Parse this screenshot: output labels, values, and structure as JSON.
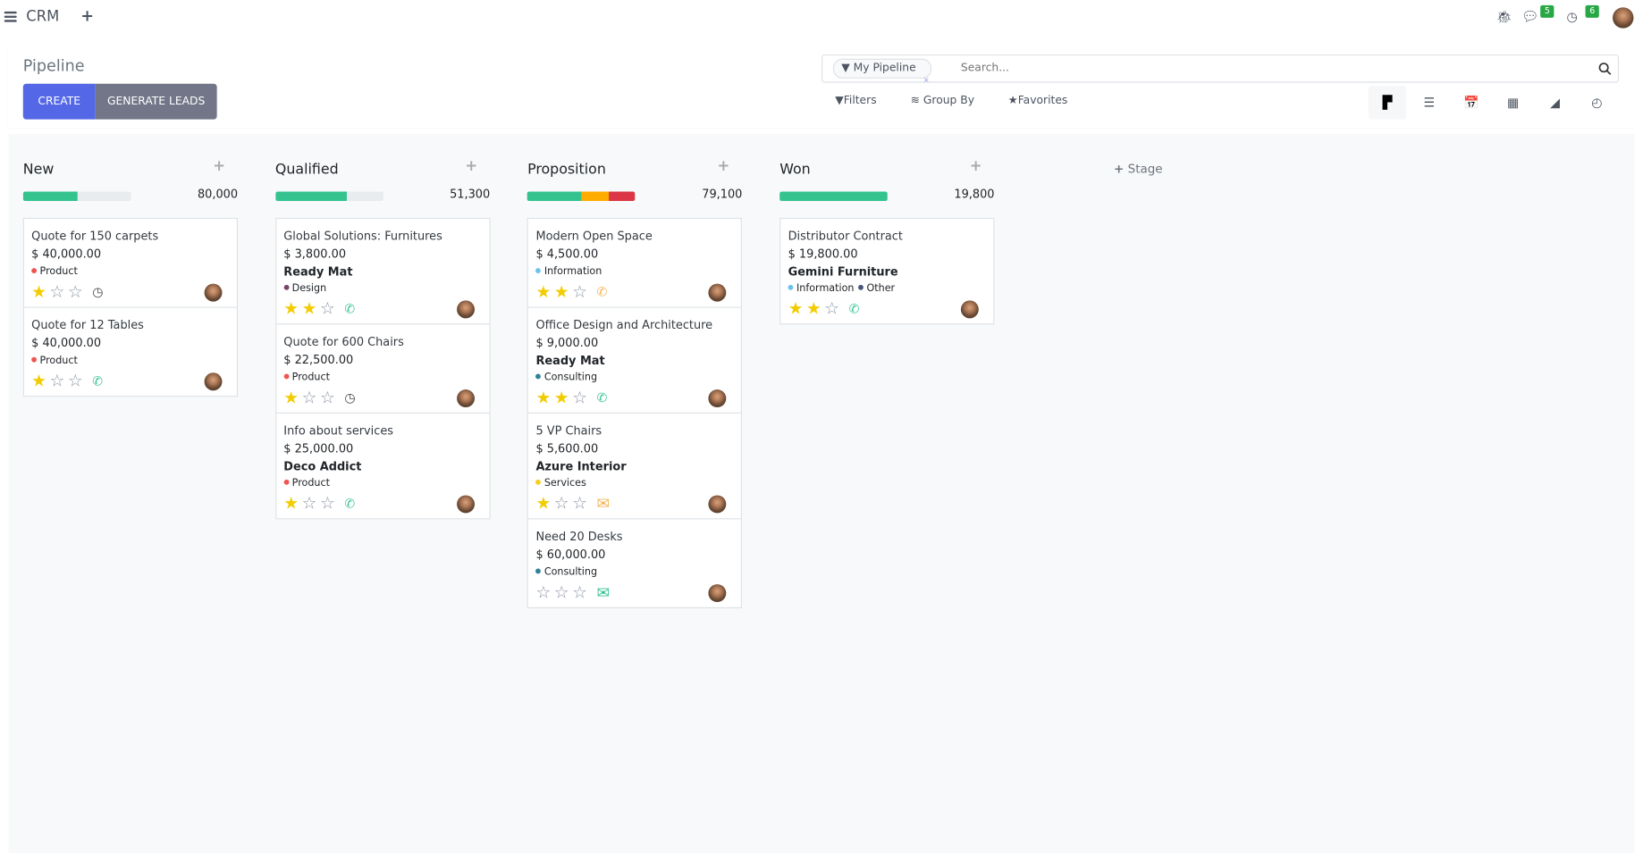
{
  "app": {
    "title": "CRM",
    "new_icon": "plus-icon",
    "menu_icon": "hamburger-icon"
  },
  "systray": {
    "debug_icon": "bug-icon",
    "messages_count": "5",
    "activities_count": "6"
  },
  "control_panel": {
    "title": "Pipeline",
    "create_label": "CREATE",
    "generate_leads_label": "GENERATE LEADS",
    "search": {
      "facet": "My Pipeline",
      "placeholder": "Search..."
    },
    "filters_label": "Filters",
    "group_by_label": "Group By",
    "favorites_label": "Favorites",
    "views": [
      {
        "name": "kanban",
        "icon": "▛",
        "active": true
      },
      {
        "name": "list",
        "icon": "☰"
      },
      {
        "name": "calendar",
        "icon": "📅"
      },
      {
        "name": "pivot",
        "icon": "▦"
      },
      {
        "name": "graph",
        "icon": "◢"
      },
      {
        "name": "activity",
        "icon": "◴"
      }
    ]
  },
  "colors": {
    "primary": "#5468e7",
    "secondary": "#737688",
    "success": "#34c38f",
    "warning": "#ffac00",
    "danger": "#dc3545"
  },
  "add_stage_label": "Stage",
  "columns": [
    {
      "title": "New",
      "total": "80,000",
      "progress": [
        {
          "color": "#34c38f",
          "fraction": 0.5
        }
      ],
      "cards": [
        {
          "name": "Quote for 150 carpets",
          "amount": "$ 40,000.00",
          "company": "",
          "tags": [
            {
              "label": "Product",
              "color": "#f0544f"
            }
          ],
          "stars": 1,
          "activity": "clock",
          "activity_color": "#444"
        },
        {
          "name": "Quote for 12 Tables",
          "amount": "$ 40,000.00",
          "company": "",
          "tags": [
            {
              "label": "Product",
              "color": "#f0544f"
            }
          ],
          "stars": 1,
          "activity": "phone",
          "activity_color": "#34c38f"
        }
      ]
    },
    {
      "title": "Qualified",
      "total": "51,300",
      "progress": [
        {
          "color": "#34c38f",
          "fraction": 0.66
        }
      ],
      "cards": [
        {
          "name": "Global Solutions: Furnitures",
          "amount": "$ 3,800.00",
          "company": "Ready Mat",
          "tags": [
            {
              "label": "Design",
              "color": "#7a4468"
            }
          ],
          "stars": 2,
          "activity": "phone",
          "activity_color": "#34c38f"
        },
        {
          "name": "Quote for 600 Chairs",
          "amount": "$ 22,500.00",
          "company": "",
          "tags": [
            {
              "label": "Product",
              "color": "#f0544f"
            }
          ],
          "stars": 1,
          "activity": "clock",
          "activity_color": "#444"
        },
        {
          "name": "Info about services",
          "amount": "$ 25,000.00",
          "company": "Deco Addict",
          "tags": [
            {
              "label": "Product",
              "color": "#f0544f"
            }
          ],
          "stars": 1,
          "activity": "phone",
          "activity_color": "#34c38f"
        }
      ]
    },
    {
      "title": "Proposition",
      "total": "79,100",
      "progress": [
        {
          "color": "#34c38f",
          "fraction": 0.5
        },
        {
          "color": "#ffac00",
          "fraction": 0.25
        },
        {
          "color": "#dc3545",
          "fraction": 0.25
        }
      ],
      "cards": [
        {
          "name": "Modern Open Space",
          "amount": "$ 4,500.00",
          "company": "",
          "tags": [
            {
              "label": "Information",
              "color": "#6cc1ed"
            }
          ],
          "stars": 2,
          "activity": "phone",
          "activity_color": "#f4b350"
        },
        {
          "name": "Office Design and Architecture",
          "amount": "$ 9,000.00",
          "company": "Ready Mat",
          "tags": [
            {
              "label": "Consulting",
              "color": "#2c8397"
            }
          ],
          "stars": 2,
          "activity": "phone",
          "activity_color": "#34c38f"
        },
        {
          "name": "5 VP Chairs",
          "amount": "$ 5,600.00",
          "company": "Azure Interior",
          "tags": [
            {
              "label": "Services",
              "color": "#f7cd1f"
            }
          ],
          "stars": 1,
          "activity": "envelope",
          "activity_color": "#f4b350"
        },
        {
          "name": "Need 20 Desks",
          "amount": "$ 60,000.00",
          "company": "",
          "tags": [
            {
              "label": "Consulting",
              "color": "#2c8397"
            }
          ],
          "stars": 0,
          "activity": "envelope",
          "activity_color": "#34c38f"
        }
      ]
    },
    {
      "title": "Won",
      "total": "19,800",
      "progress": [
        {
          "color": "#34c38f",
          "fraction": 1
        }
      ],
      "cards": [
        {
          "name": "Distributor Contract",
          "amount": "$ 19,800.00",
          "company": "Gemini Furniture",
          "tags": [
            {
              "label": "Information",
              "color": "#6cc1ed"
            },
            {
              "label": "Other",
              "color": "#475577"
            }
          ],
          "stars": 2,
          "activity": "phone",
          "activity_color": "#34c38f"
        }
      ]
    }
  ]
}
